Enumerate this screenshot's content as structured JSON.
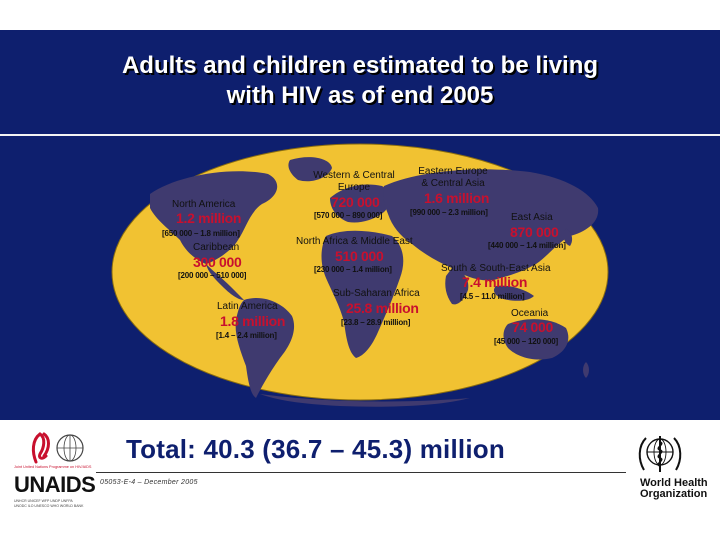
{
  "slide": {
    "title_line_1": "Adults and children estimated to be living",
    "title_line_2": "with HIV as of end 2005"
  },
  "colors": {
    "background_blue": "#0e1f6e",
    "map_land_and_ocean": "#f1c232",
    "value_red": "#c8102e"
  },
  "regions": [
    {
      "id": "north-america",
      "name": "North America",
      "value": "1.2 million",
      "range": "[650 000 – 1.8 million]"
    },
    {
      "id": "caribbean",
      "name": "Caribbean",
      "value": "300 000",
      "range": "[200 000 – 510 000]"
    },
    {
      "id": "latin-america",
      "name": "Latin America",
      "value": "1.8 million",
      "range": "[1.4 – 2.4 million]"
    },
    {
      "id": "western-central-europe",
      "name_line_1": "Western & Central",
      "name_line_2": "Europe",
      "value": "720 000",
      "range": "[570 000 – 890 000]"
    },
    {
      "id": "eastern-europe-central-asia",
      "name_line_1": "Eastern Europe",
      "name_line_2": "& Central Asia",
      "value": "1.6 million",
      "range": "[990 000 – 2.3 million]"
    },
    {
      "id": "north-africa-middle-east",
      "name": "North Africa & Middle East",
      "value": "510 000",
      "range": "[230 000 – 1.4 million]"
    },
    {
      "id": "sub-saharan-africa",
      "name": "Sub-Saharan Africa",
      "value": "25.8 million",
      "range": "[23.8 – 28.9 million]"
    },
    {
      "id": "east-asia",
      "name": "East Asia",
      "value": "870 000",
      "range": "[440 000 – 1.4 million]"
    },
    {
      "id": "south-southeast-asia",
      "name": "South & South-East Asia",
      "value": "7.4 million",
      "range": "[4.5 – 11.0 million]"
    },
    {
      "id": "oceania",
      "name": "Oceania",
      "value": "74 000",
      "range": "[45 000 – 120 000]"
    }
  ],
  "footer": {
    "total": "Total: 40.3 (36.7 – 45.3) million",
    "ref_code": "05053-E-4 – December 2005",
    "unaids_tagline": "Joint United Nations Programme on HIV/AIDS",
    "unaids_wordmark": "UNAIDS",
    "unaids_cosponsors_1": "UNHCR UNICEF WFP UNDP UNFPA",
    "unaids_cosponsors_2": "UNODC ILO UNESCO WHO WORLD BANK",
    "who_name_line_1": "World Health",
    "who_name_line_2": "Organization"
  }
}
